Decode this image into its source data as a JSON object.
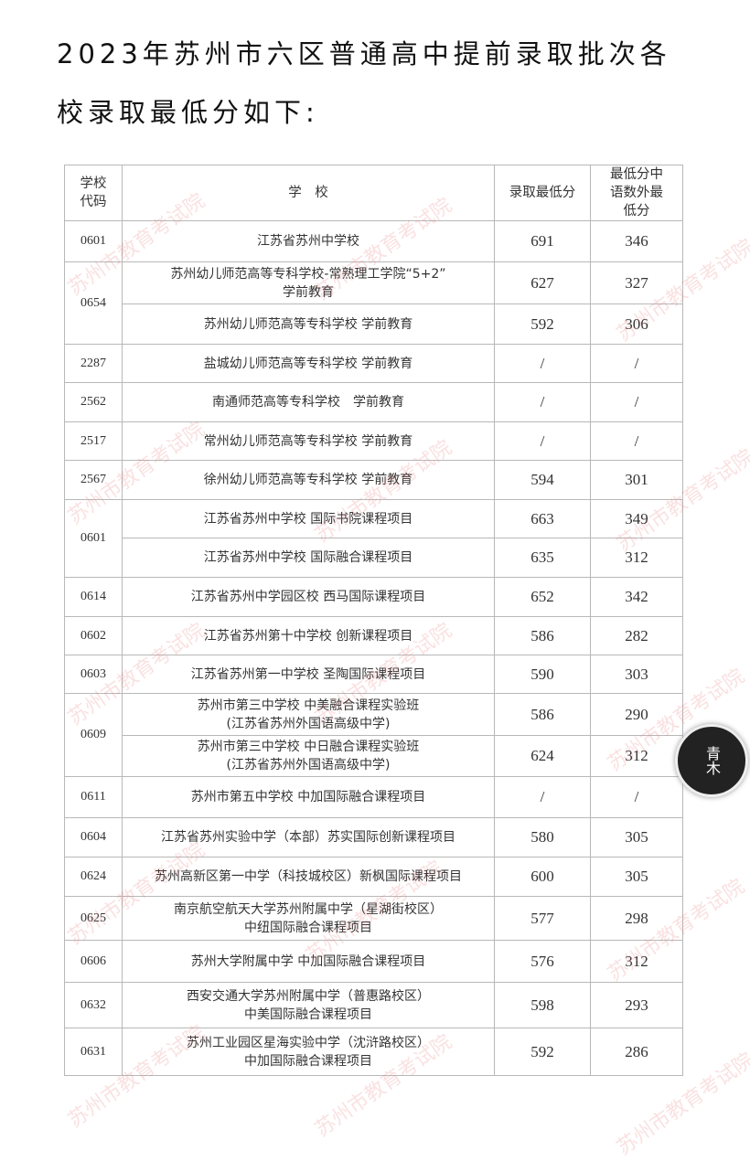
{
  "title_line1": "2023年苏州市六区普通高中提前录取批次各",
  "title_line2": "校录取最低分如下:",
  "headers": {
    "code": "学校代码",
    "school": "学　校",
    "min_score": "录取最低分",
    "cme_min": "最低分中语数外最低分"
  },
  "groups": [
    {
      "code": "0601",
      "entries": [
        {
          "school": [
            "江苏省苏州中学校"
          ],
          "min_score": "691",
          "cme_min": "346"
        }
      ]
    },
    {
      "code": "0654",
      "entries": [
        {
          "school": [
            "苏州幼儿师范高等专科学校-常熟理工学院“5+2”",
            "学前教育"
          ],
          "min_score": "627",
          "cme_min": "327"
        },
        {
          "school": [
            "苏州幼儿师范高等专科学校 学前教育"
          ],
          "min_score": "592",
          "cme_min": "306"
        }
      ]
    },
    {
      "code": "2287",
      "entries": [
        {
          "school": [
            "盐城幼儿师范高等专科学校 学前教育"
          ],
          "min_score": "/",
          "cme_min": "/"
        }
      ]
    },
    {
      "code": "2562",
      "entries": [
        {
          "school": [
            "南通师范高等专科学校　学前教育"
          ],
          "min_score": "/",
          "cme_min": "/"
        }
      ]
    },
    {
      "code": "2517",
      "entries": [
        {
          "school": [
            "常州幼儿师范高等专科学校 学前教育"
          ],
          "min_score": "/",
          "cme_min": "/"
        }
      ]
    },
    {
      "code": "2567",
      "entries": [
        {
          "school": [
            "徐州幼儿师范高等专科学校 学前教育"
          ],
          "min_score": "594",
          "cme_min": "301"
        }
      ]
    },
    {
      "code": "0601",
      "entries": [
        {
          "school": [
            "江苏省苏州中学校 国际书院课程项目"
          ],
          "min_score": "663",
          "cme_min": "349"
        },
        {
          "school": [
            "江苏省苏州中学校 国际融合课程项目"
          ],
          "min_score": "635",
          "cme_min": "312"
        }
      ]
    },
    {
      "code": "0614",
      "entries": [
        {
          "school": [
            "江苏省苏州中学园区校 西马国际课程项目"
          ],
          "min_score": "652",
          "cme_min": "342"
        }
      ]
    },
    {
      "code": "0602",
      "entries": [
        {
          "school": [
            "江苏省苏州第十中学校 创新课程项目"
          ],
          "min_score": "586",
          "cme_min": "282"
        }
      ]
    },
    {
      "code": "0603",
      "entries": [
        {
          "school": [
            "江苏省苏州第一中学校 圣陶国际课程项目"
          ],
          "min_score": "590",
          "cme_min": "303"
        }
      ]
    },
    {
      "code": "0609",
      "entries": [
        {
          "school": [
            "苏州市第三中学校 中美融合课程实验班",
            "(江苏省苏州外国语高级中学)"
          ],
          "min_score": "586",
          "cme_min": "290"
        },
        {
          "school": [
            "苏州市第三中学校 中日融合课程实验班",
            "(江苏省苏州外国语高级中学)"
          ],
          "min_score": "624",
          "cme_min": "312"
        }
      ]
    },
    {
      "code": "0611",
      "entries": [
        {
          "school": [
            "苏州市第五中学校 中加国际融合课程项目"
          ],
          "min_score": "/",
          "cme_min": "/"
        }
      ]
    },
    {
      "code": "0604",
      "entries": [
        {
          "school": [
            "江苏省苏州实验中学（本部）苏实国际创新课程项目"
          ],
          "min_score": "580",
          "cme_min": "305"
        }
      ]
    },
    {
      "code": "0624",
      "entries": [
        {
          "school": [
            "苏州高新区第一中学（科技城校区）新枫国际课程项目"
          ],
          "min_score": "600",
          "cme_min": "305"
        }
      ]
    },
    {
      "code": "0625",
      "entries": [
        {
          "school": [
            "南京航空航天大学苏州附属中学（星湖街校区）",
            "中纽国际融合课程项目"
          ],
          "min_score": "577",
          "cme_min": "298"
        }
      ]
    },
    {
      "code": "0606",
      "entries": [
        {
          "school": [
            "苏州大学附属中学 中加国际融合课程项目"
          ],
          "min_score": "576",
          "cme_min": "312"
        }
      ]
    },
    {
      "code": "0632",
      "entries": [
        {
          "school": [
            "西安交通大学苏州附属中学（普惠路校区）",
            "中美国际融合课程项目"
          ],
          "min_score": "598",
          "cme_min": "293"
        }
      ]
    },
    {
      "code": "0631",
      "entries": [
        {
          "school": [
            "苏州工业园区星海实验中学（沈浒路校区）",
            "中加国际融合课程项目"
          ],
          "min_score": "592",
          "cme_min": "286"
        }
      ]
    }
  ],
  "watermark": "苏州市教育考试院",
  "logo_text": "青木"
}
